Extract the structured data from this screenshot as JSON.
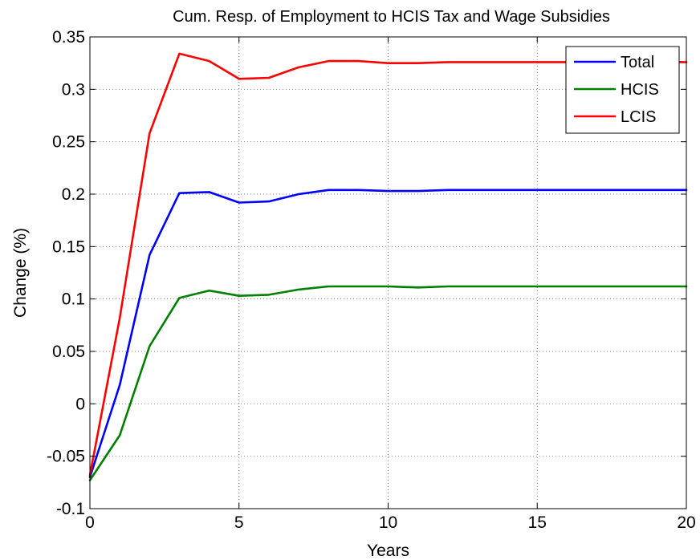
{
  "chart_data": {
    "type": "line",
    "title": "Cum. Resp. of Employment to HCIS Tax and Wage Subsidies",
    "xlabel": "Years",
    "ylabel": "Change (%)",
    "xlim": [
      0,
      20
    ],
    "ylim": [
      -0.1,
      0.35
    ],
    "x_ticks": [
      0,
      5,
      10,
      15,
      20
    ],
    "x_tick_labels": [
      "0",
      "5",
      "10",
      "15",
      "20"
    ],
    "y_ticks": [
      -0.1,
      -0.05,
      0,
      0.05,
      0.1,
      0.15,
      0.2,
      0.25,
      0.3,
      0.35
    ],
    "y_tick_labels": [
      "-0.1",
      "-0.05",
      "0",
      "0.05",
      "0.1",
      "0.15",
      "0.2",
      "0.25",
      "0.3",
      "0.35"
    ],
    "grid": true,
    "legend_position": "top-right",
    "x": [
      0,
      1,
      2,
      3,
      4,
      5,
      6,
      7,
      8,
      9,
      10,
      11,
      12,
      13,
      14,
      15,
      16,
      17,
      18,
      19,
      20
    ],
    "series": [
      {
        "name": "Total",
        "color": "#0000ff",
        "values": [
          -0.07,
          0.018,
          0.142,
          0.201,
          0.202,
          0.192,
          0.193,
          0.2,
          0.204,
          0.204,
          0.203,
          0.203,
          0.204,
          0.204,
          0.204,
          0.204,
          0.204,
          0.204,
          0.204,
          0.204,
          0.204
        ]
      },
      {
        "name": "HCIS",
        "color": "#008000",
        "values": [
          -0.073,
          -0.03,
          0.055,
          0.101,
          0.108,
          0.103,
          0.104,
          0.109,
          0.112,
          0.112,
          0.112,
          0.111,
          0.112,
          0.112,
          0.112,
          0.112,
          0.112,
          0.112,
          0.112,
          0.112,
          0.112
        ]
      },
      {
        "name": "LCIS",
        "color": "#ff0000",
        "values": [
          -0.068,
          0.082,
          0.258,
          0.334,
          0.327,
          0.31,
          0.311,
          0.321,
          0.327,
          0.327,
          0.325,
          0.325,
          0.326,
          0.326,
          0.326,
          0.326,
          0.326,
          0.326,
          0.326,
          0.326,
          0.326
        ]
      }
    ]
  }
}
